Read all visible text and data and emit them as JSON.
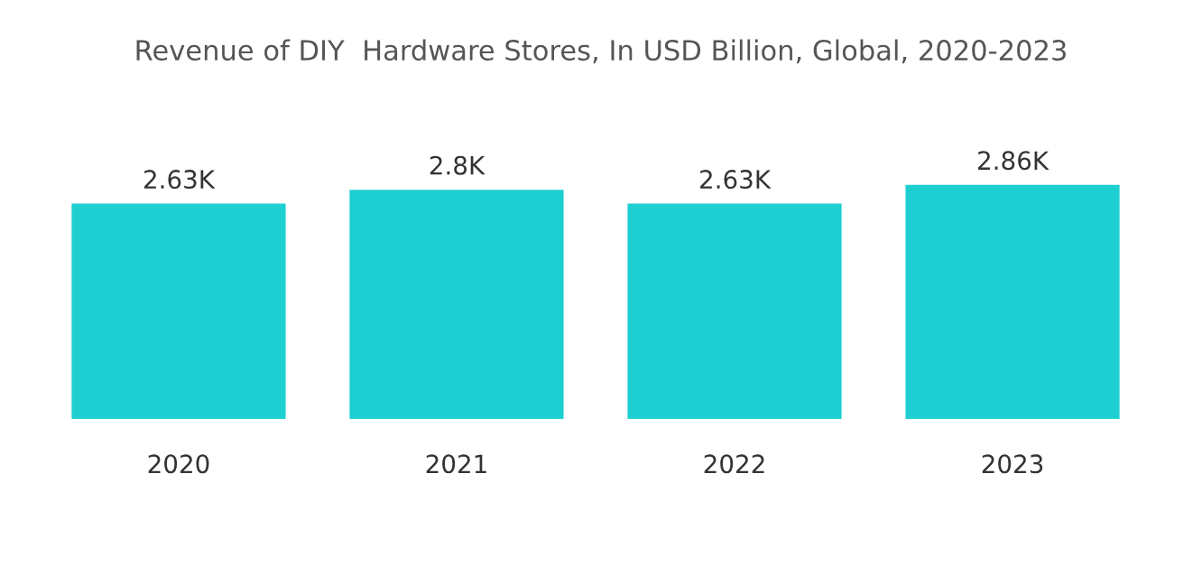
{
  "chart_data": {
    "type": "bar",
    "title": "Revenue of DIY  Hardware Stores, In USD Billion, Global, 2020-2023",
    "categories": [
      "2020",
      "2021",
      "2022",
      "2023"
    ],
    "values": [
      2630,
      2800,
      2630,
      2860
    ],
    "value_labels": [
      "2.63K",
      "2.8K",
      "2.63K",
      "2.86K"
    ],
    "color": "#1dcfd1",
    "tick_labels": "x",
    "grid": false,
    "legend": false
  }
}
